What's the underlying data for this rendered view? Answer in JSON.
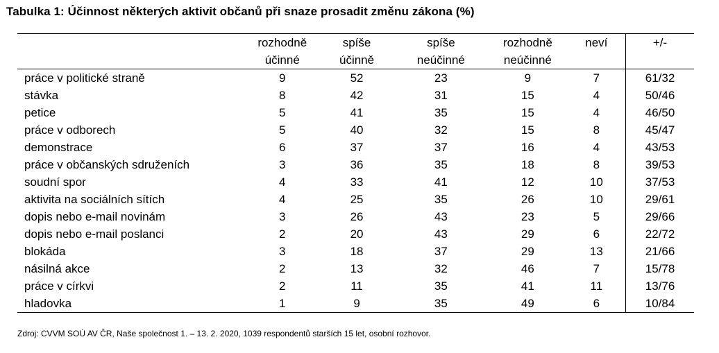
{
  "title": "Tabulka 1: Účinnost některých aktivit občanů při snaze prosadit změnu zákona (%)",
  "columns": [
    {
      "line1": "rozhodně",
      "line2": "účinné"
    },
    {
      "line1": "spíše",
      "line2": "účinně"
    },
    {
      "line1": "spíše",
      "line2": "neúčinné"
    },
    {
      "line1": "rozhodně",
      "line2": "neúčinné"
    },
    {
      "line1": "neví",
      "line2": ""
    },
    {
      "line1": "+/-",
      "line2": ""
    }
  ],
  "rows": [
    {
      "label": "práce v politické straně",
      "v": [
        "9",
        "52",
        "23",
        "9",
        "7",
        "61/32"
      ]
    },
    {
      "label": "stávka",
      "v": [
        "8",
        "42",
        "31",
        "15",
        "4",
        "50/46"
      ]
    },
    {
      "label": "petice",
      "v": [
        "5",
        "41",
        "35",
        "15",
        "4",
        "46/50"
      ]
    },
    {
      "label": "práce v odborech",
      "v": [
        "5",
        "40",
        "32",
        "15",
        "8",
        "45/47"
      ]
    },
    {
      "label": "demonstrace",
      "v": [
        "6",
        "37",
        "37",
        "16",
        "4",
        "43/53"
      ]
    },
    {
      "label": "práce v občanských sdruženích",
      "v": [
        "3",
        "36",
        "35",
        "18",
        "8",
        "39/53"
      ]
    },
    {
      "label": "soudní spor",
      "v": [
        "4",
        "33",
        "41",
        "12",
        "10",
        "37/53"
      ]
    },
    {
      "label": "aktivita na sociálních sítích",
      "v": [
        "4",
        "25",
        "35",
        "26",
        "10",
        "29/61"
      ]
    },
    {
      "label": "dopis nebo e-mail novinám",
      "v": [
        "3",
        "26",
        "43",
        "23",
        "5",
        "29/66"
      ]
    },
    {
      "label": "dopis nebo e-mail poslanci",
      "v": [
        "2",
        "20",
        "43",
        "29",
        "6",
        "22/72"
      ]
    },
    {
      "label": "blokáda",
      "v": [
        "3",
        "18",
        "37",
        "29",
        "13",
        "21/66"
      ]
    },
    {
      "label": "násilná akce",
      "v": [
        "2",
        "13",
        "32",
        "46",
        "7",
        "15/78"
      ]
    },
    {
      "label": "práce v církvi",
      "v": [
        "2",
        "11",
        "35",
        "41",
        "11",
        "13/76"
      ]
    },
    {
      "label": "hladovka",
      "v": [
        "1",
        "9",
        "35",
        "49",
        "6",
        "10/84"
      ]
    }
  ],
  "source": "Zdroj: CVVM SOÚ AV ČR, Naše společnost 1. – 13. 2. 2020, 1039 respondentů starších 15 let, osobní rozhovor."
}
